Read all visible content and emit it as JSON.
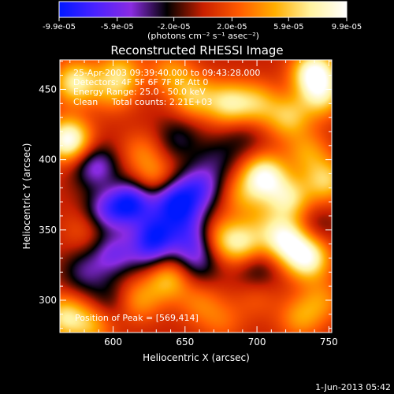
{
  "chart_data": {
    "type": "heatmap",
    "title": "Reconstructed RHESSI Image",
    "xlabel": "Heliocentric X (arcsec)",
    "ylabel": "Heliocentric Y (arcsec)",
    "xlim": [
      563,
      752
    ],
    "ylim": [
      277,
      471
    ],
    "xticks": [
      600,
      650,
      700,
      750
    ],
    "yticks": [
      300,
      350,
      400,
      450
    ],
    "colorbar": {
      "range": [
        -9.9e-05,
        9.9e-05
      ],
      "tick_values": [
        -9.9e-05,
        -5.9e-05,
        -2e-05,
        2e-05,
        5.9e-05,
        9.9e-05
      ],
      "tick_labels": [
        "-9.9e-05",
        "-5.9e-05",
        "-2.0e-05",
        "2.0e-05",
        "5.9e-05",
        "9.9e-05"
      ],
      "units_text": "(photons cm⁻² s⁻¹ asec⁻²)",
      "colors": [
        "#0018ff",
        "#4a22ff",
        "#8a2be2",
        "#000000",
        "#c81f00",
        "#ff5a00",
        "#ffae00",
        "#fff3a0",
        "#ffffff"
      ]
    },
    "annotations": [
      "25-Apr-2003 09:39:40.000 to 09:43:28.000",
      "Detectors: 4F 5F 6F 7F 8F  Att 0",
      "Energy Range: 25.0 - 50.0 keV",
      "Clean     Total counts: 2.21E+03"
    ],
    "peak_text": "Position of Peak = [569,414]",
    "peak": [
      569,
      414
    ],
    "sources": [
      {
        "x": 569,
        "y": 414,
        "value": 9.9e-05
      },
      {
        "x": 574,
        "y": 455,
        "value": 7.5e-05
      },
      {
        "x": 600,
        "y": 448,
        "value": 3.5e-05
      },
      {
        "x": 605,
        "y": 462,
        "value": 5e-05
      },
      {
        "x": 640,
        "y": 462,
        "value": 4e-05
      },
      {
        "x": 656,
        "y": 445,
        "value": 5.5e-05
      },
      {
        "x": 680,
        "y": 440,
        "value": 6.5e-05
      },
      {
        "x": 700,
        "y": 440,
        "value": 5e-05
      },
      {
        "x": 722,
        "y": 430,
        "value": 5.5e-05
      },
      {
        "x": 740,
        "y": 462,
        "value": 9.5e-05
      },
      {
        "x": 745,
        "y": 445,
        "value": 6e-05
      },
      {
        "x": 735,
        "y": 405,
        "value": 4e-05
      },
      {
        "x": 748,
        "y": 385,
        "value": 6e-05
      },
      {
        "x": 705,
        "y": 388,
        "value": 9e-05
      },
      {
        "x": 722,
        "y": 372,
        "value": 6.5e-05
      },
      {
        "x": 690,
        "y": 374,
        "value": 3.5e-05
      },
      {
        "x": 706,
        "y": 355,
        "value": 2.5e-05
      },
      {
        "x": 720,
        "y": 343,
        "value": 8.5e-05
      },
      {
        "x": 735,
        "y": 330,
        "value": 9e-05
      },
      {
        "x": 690,
        "y": 340,
        "value": 6e-05
      },
      {
        "x": 675,
        "y": 344,
        "value": 4e-05
      },
      {
        "x": 620,
        "y": 405,
        "value": 3e-05
      },
      {
        "x": 630,
        "y": 385,
        "value": 4.5e-05
      },
      {
        "x": 600,
        "y": 373,
        "value": 2.5e-05
      },
      {
        "x": 580,
        "y": 350,
        "value": 2e-05
      },
      {
        "x": 638,
        "y": 315,
        "value": 5.5e-05
      },
      {
        "x": 618,
        "y": 300,
        "value": 4e-05
      },
      {
        "x": 660,
        "y": 298,
        "value": 3e-05
      },
      {
        "x": 676,
        "y": 285,
        "value": 2.5e-05
      },
      {
        "x": 585,
        "y": 282,
        "value": 4.5e-05
      },
      {
        "x": 566,
        "y": 288,
        "value": 6.5e-05
      },
      {
        "x": 730,
        "y": 287,
        "value": 4e-05
      },
      {
        "x": 745,
        "y": 300,
        "value": 3.5e-05
      },
      {
        "x": 700,
        "y": 302,
        "value": 2e-05
      },
      {
        "x": 612,
        "y": 370,
        "value": -9e-05
      },
      {
        "x": 596,
        "y": 365,
        "value": -6.5e-05
      },
      {
        "x": 640,
        "y": 373,
        "value": -7e-05
      },
      {
        "x": 660,
        "y": 380,
        "value": -6e-05
      },
      {
        "x": 650,
        "y": 360,
        "value": -5e-05
      },
      {
        "x": 630,
        "y": 348,
        "value": -6.5e-05
      },
      {
        "x": 600,
        "y": 333,
        "value": -5e-05
      },
      {
        "x": 588,
        "y": 395,
        "value": -5.5e-05
      },
      {
        "x": 655,
        "y": 340,
        "value": -5e-05
      },
      {
        "x": 625,
        "y": 335,
        "value": -4.5e-05
      },
      {
        "x": 645,
        "y": 415,
        "value": -3e-05
      },
      {
        "x": 672,
        "y": 400,
        "value": -2.5e-05
      },
      {
        "x": 660,
        "y": 325,
        "value": -3e-05
      },
      {
        "x": 580,
        "y": 320,
        "value": -3.5e-05
      },
      {
        "x": 700,
        "y": 322,
        "value": -3e-05
      },
      {
        "x": 597,
        "y": 300,
        "value": -2.5e-05
      },
      {
        "x": 690,
        "y": 415,
        "value": -2e-05
      },
      {
        "x": 740,
        "y": 352,
        "value": -2e-05
      }
    ]
  },
  "footer": {
    "timestamp": "1-Jun-2013 05:42"
  }
}
